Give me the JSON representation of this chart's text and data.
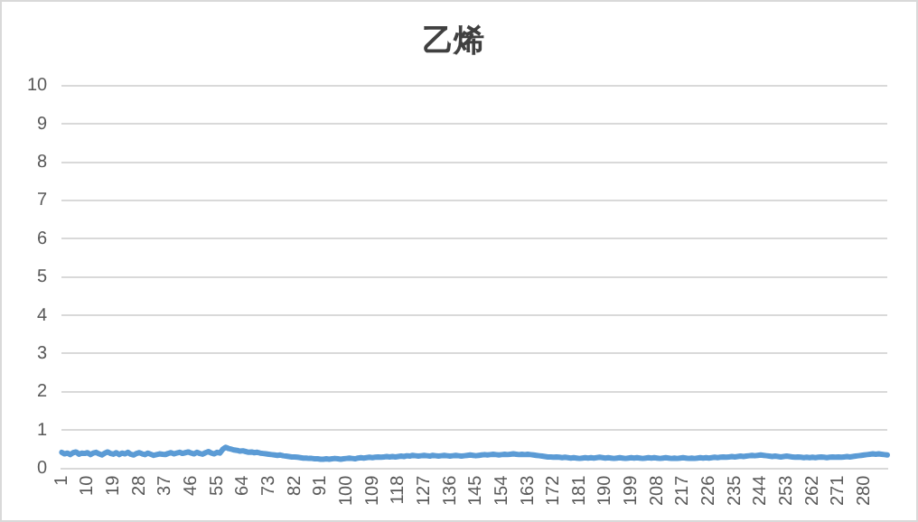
{
  "chart_data": {
    "type": "line",
    "title": "乙烯",
    "categories": [
      "1",
      null,
      null,
      null,
      null,
      null,
      null,
      null,
      null,
      "10",
      null,
      null,
      null,
      null,
      null,
      null,
      null,
      null,
      "19",
      null,
      null,
      null,
      null,
      null,
      null,
      null,
      null,
      "28",
      null,
      null,
      null,
      null,
      null,
      null,
      null,
      null,
      "37",
      null,
      null,
      null,
      null,
      null,
      null,
      null,
      null,
      "46",
      null,
      null,
      null,
      null,
      null,
      null,
      null,
      null,
      "55",
      null,
      null,
      null,
      null,
      null,
      null,
      null,
      null,
      "64",
      null,
      null,
      null,
      null,
      null,
      null,
      null,
      null,
      "73",
      null,
      null,
      null,
      null,
      null,
      null,
      null,
      null,
      "82",
      null,
      null,
      null,
      null,
      null,
      null,
      null,
      null,
      "91",
      null,
      null,
      null,
      null,
      null,
      null,
      null,
      null,
      "100",
      null,
      null,
      null,
      null,
      null,
      null,
      null,
      null,
      "109",
      null,
      null,
      null,
      null,
      null,
      null,
      null,
      null,
      "118",
      null,
      null,
      null,
      null,
      null,
      null,
      null,
      null,
      "127",
      null,
      null,
      null,
      null,
      null,
      null,
      null,
      null,
      "136",
      null,
      null,
      null,
      null,
      null,
      null,
      null,
      null,
      "145",
      null,
      null,
      null,
      null,
      null,
      null,
      null,
      null,
      "154",
      null,
      null,
      null,
      null,
      null,
      null,
      null,
      null,
      "163",
      null,
      null,
      null,
      null,
      null,
      null,
      null,
      null,
      "172",
      null,
      null,
      null,
      null,
      null,
      null,
      null,
      null,
      "181",
      null,
      null,
      null,
      null,
      null,
      null,
      null,
      null,
      "190",
      null,
      null,
      null,
      null,
      null,
      null,
      null,
      null,
      "199",
      null,
      null,
      null,
      null,
      null,
      null,
      null,
      null,
      "208",
      null,
      null,
      null,
      null,
      null,
      null,
      null,
      null,
      "217",
      null,
      null,
      null,
      null,
      null,
      null,
      null,
      null,
      "226",
      null,
      null,
      null,
      null,
      null,
      null,
      null,
      null,
      "235",
      null,
      null,
      null,
      null,
      null,
      null,
      null,
      null,
      "244",
      null,
      null,
      null,
      null,
      null,
      null,
      null,
      null,
      "253",
      null,
      null,
      null,
      null,
      null,
      null,
      null,
      null,
      "262",
      null,
      null,
      null,
      null,
      null,
      null,
      null,
      null,
      "271",
      null,
      null,
      null,
      null,
      null,
      null,
      null,
      null,
      "280",
      null,
      null,
      null,
      null,
      null,
      null,
      null,
      null
    ],
    "series": [
      {
        "color": "#5b9bd5",
        "values": [
          0.42,
          0.38,
          0.4,
          0.36,
          0.41,
          0.43,
          0.37,
          0.4,
          0.39,
          0.41,
          0.36,
          0.4,
          0.42,
          0.38,
          0.35,
          0.4,
          0.43,
          0.39,
          0.37,
          0.41,
          0.36,
          0.4,
          0.38,
          0.42,
          0.37,
          0.35,
          0.39,
          0.41,
          0.38,
          0.36,
          0.4,
          0.37,
          0.34,
          0.36,
          0.38,
          0.37,
          0.36,
          0.39,
          0.41,
          0.38,
          0.4,
          0.42,
          0.39,
          0.41,
          0.43,
          0.4,
          0.38,
          0.42,
          0.39,
          0.37,
          0.41,
          0.44,
          0.4,
          0.38,
          0.42,
          0.4,
          0.5,
          0.55,
          0.52,
          0.5,
          0.48,
          0.47,
          0.45,
          0.46,
          0.44,
          0.42,
          0.43,
          0.41,
          0.42,
          0.4,
          0.39,
          0.38,
          0.37,
          0.36,
          0.35,
          0.34,
          0.35,
          0.33,
          0.32,
          0.31,
          0.3,
          0.3,
          0.29,
          0.28,
          0.27,
          0.27,
          0.26,
          0.26,
          0.25,
          0.25,
          0.24,
          0.24,
          0.25,
          0.24,
          0.25,
          0.26,
          0.25,
          0.24,
          0.25,
          0.26,
          0.27,
          0.26,
          0.25,
          0.27,
          0.28,
          0.27,
          0.28,
          0.29,
          0.28,
          0.29,
          0.3,
          0.29,
          0.3,
          0.31,
          0.3,
          0.31,
          0.3,
          0.31,
          0.32,
          0.31,
          0.33,
          0.32,
          0.34,
          0.33,
          0.32,
          0.33,
          0.34,
          0.33,
          0.32,
          0.34,
          0.33,
          0.32,
          0.33,
          0.34,
          0.33,
          0.32,
          0.33,
          0.34,
          0.33,
          0.32,
          0.33,
          0.34,
          0.35,
          0.34,
          0.33,
          0.34,
          0.35,
          0.36,
          0.35,
          0.36,
          0.37,
          0.36,
          0.35,
          0.36,
          0.37,
          0.36,
          0.37,
          0.38,
          0.37,
          0.36,
          0.37,
          0.36,
          0.37,
          0.36,
          0.35,
          0.34,
          0.33,
          0.32,
          0.31,
          0.3,
          0.3,
          0.29,
          0.3,
          0.29,
          0.28,
          0.29,
          0.28,
          0.27,
          0.28,
          0.27,
          0.26,
          0.27,
          0.28,
          0.27,
          0.28,
          0.27,
          0.28,
          0.29,
          0.28,
          0.27,
          0.28,
          0.27,
          0.26,
          0.27,
          0.28,
          0.27,
          0.26,
          0.27,
          0.28,
          0.27,
          0.28,
          0.27,
          0.26,
          0.27,
          0.28,
          0.27,
          0.28,
          0.27,
          0.26,
          0.27,
          0.28,
          0.27,
          0.26,
          0.27,
          0.26,
          0.27,
          0.28,
          0.27,
          0.26,
          0.27,
          0.26,
          0.27,
          0.28,
          0.27,
          0.28,
          0.27,
          0.28,
          0.29,
          0.28,
          0.29,
          0.3,
          0.29,
          0.3,
          0.31,
          0.3,
          0.31,
          0.32,
          0.31,
          0.32,
          0.33,
          0.34,
          0.33,
          0.34,
          0.35,
          0.34,
          0.33,
          0.32,
          0.31,
          0.32,
          0.31,
          0.3,
          0.31,
          0.32,
          0.31,
          0.3,
          0.29,
          0.3,
          0.29,
          0.28,
          0.29,
          0.28,
          0.29,
          0.28,
          0.29,
          0.3,
          0.29,
          0.28,
          0.29,
          0.3,
          0.29,
          0.3,
          0.29,
          0.3,
          0.31,
          0.3,
          0.31,
          0.32,
          0.33,
          0.34,
          0.35,
          0.36,
          0.37,
          0.38,
          0.37,
          0.38,
          0.37,
          0.36,
          0.35
        ]
      }
    ],
    "ylim": [
      0,
      10
    ],
    "yticks": [
      0,
      1,
      2,
      3,
      4,
      5,
      6,
      7,
      8,
      9,
      10
    ],
    "grid": "y",
    "legend": false,
    "marker": "none",
    "line_style": "solid"
  }
}
